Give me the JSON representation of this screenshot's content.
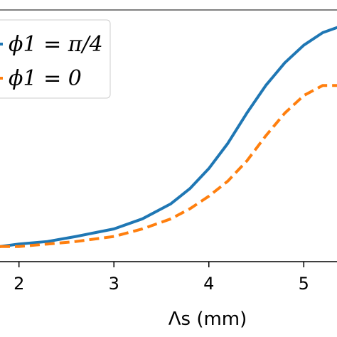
{
  "chart_data": {
    "type": "line",
    "title": "",
    "xlabel": "Λs (mm)",
    "ylabel": "",
    "xlim": [
      1.8,
      5.35
    ],
    "ylim": [
      0.0,
      1.0
    ],
    "xticks": [
      2,
      3,
      4,
      5
    ],
    "xtick_labels": [
      "2",
      "3",
      "4",
      "5"
    ],
    "grid": false,
    "legend_position": "top-left",
    "series": [
      {
        "name": "ϕ1 = π/4",
        "style": "solid",
        "color": "#1f77b4",
        "x": [
          1.8,
          2.0,
          2.3,
          2.6,
          3.0,
          3.3,
          3.6,
          3.8,
          4.0,
          4.2,
          4.4,
          4.6,
          4.8,
          5.0,
          5.2,
          5.35
        ],
        "y": [
          0.06,
          0.07,
          0.08,
          0.1,
          0.13,
          0.17,
          0.23,
          0.29,
          0.37,
          0.47,
          0.59,
          0.7,
          0.79,
          0.86,
          0.91,
          0.93
        ]
      },
      {
        "name": "ϕ1 = 0",
        "style": "dashed",
        "color": "#ff7f0e",
        "x": [
          1.8,
          2.0,
          2.3,
          2.6,
          3.0,
          3.3,
          3.6,
          3.8,
          4.0,
          4.2,
          4.4,
          4.6,
          4.8,
          5.0,
          5.2,
          5.35
        ],
        "y": [
          0.06,
          0.06,
          0.07,
          0.08,
          0.1,
          0.13,
          0.17,
          0.21,
          0.26,
          0.32,
          0.4,
          0.5,
          0.59,
          0.66,
          0.7,
          0.7
        ]
      }
    ]
  }
}
